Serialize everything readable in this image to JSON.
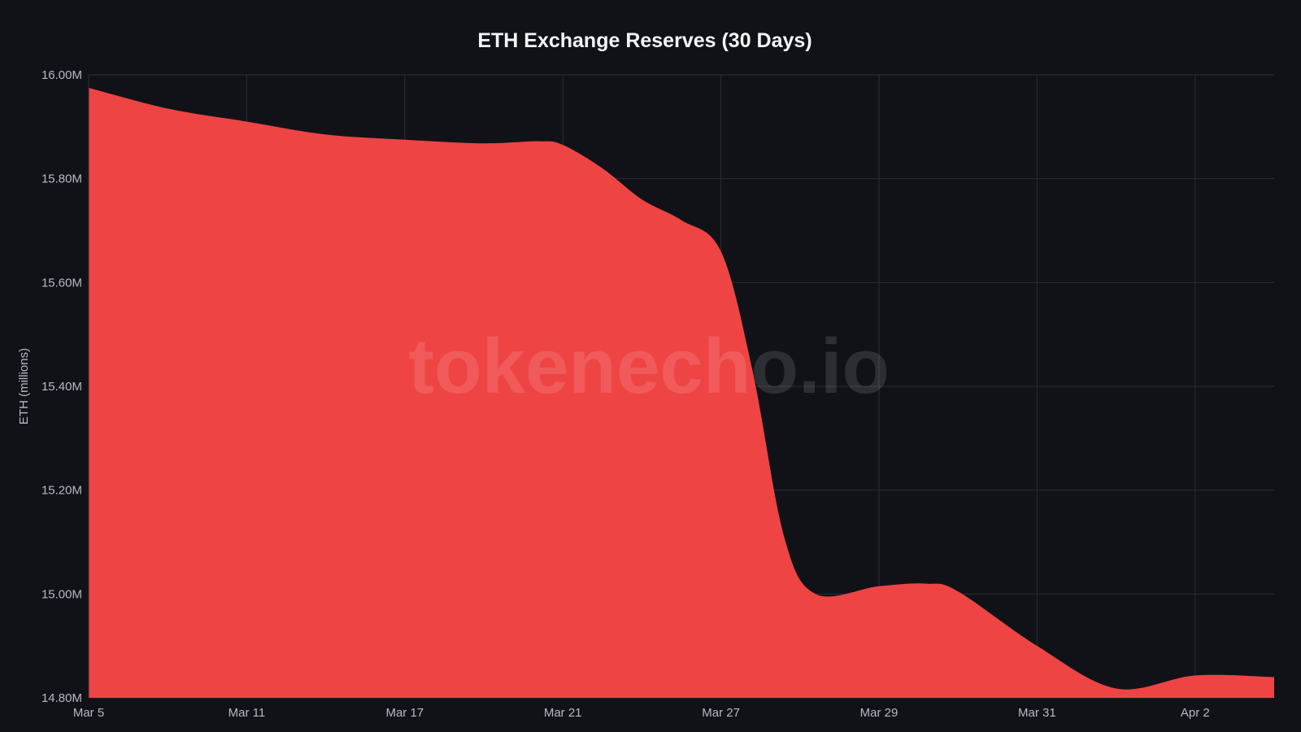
{
  "chart_data": {
    "type": "area",
    "title": "ETH Exchange Reserves (30 Days)",
    "xlabel": "",
    "ylabel": "ETH (millions)",
    "watermark": "tokenecho.io",
    "y_tick_labels": [
      "16.00M",
      "15.80M",
      "15.60M",
      "15.40M",
      "15.20M",
      "15.00M",
      "14.80M"
    ],
    "x_tick_labels": [
      "Mar 5",
      "Mar 11",
      "Mar 17",
      "Mar 21",
      "Mar 27",
      "Mar 29",
      "Mar 31",
      "Apr 2"
    ],
    "y_ticks": [
      16.0,
      15.8,
      15.6,
      15.4,
      15.2,
      15.0,
      14.8
    ],
    "ylim": [
      14.8,
      16.0
    ],
    "x_range_index": [
      0,
      7.5
    ],
    "grid": true,
    "legend": "none",
    "fill_color": "#ef4444",
    "background_color": "#111218",
    "points": [
      {
        "x": 0.0,
        "y": 15.975
      },
      {
        "x": 0.5,
        "y": 15.935
      },
      {
        "x": 1.0,
        "y": 15.91
      },
      {
        "x": 1.5,
        "y": 15.885
      },
      {
        "x": 2.0,
        "y": 15.875
      },
      {
        "x": 2.5,
        "y": 15.868
      },
      {
        "x": 2.85,
        "y": 15.872
      },
      {
        "x": 3.0,
        "y": 15.865
      },
      {
        "x": 3.25,
        "y": 15.82
      },
      {
        "x": 3.5,
        "y": 15.76
      },
      {
        "x": 3.75,
        "y": 15.72
      },
      {
        "x": 4.0,
        "y": 15.66
      },
      {
        "x": 4.2,
        "y": 15.43
      },
      {
        "x": 4.4,
        "y": 15.11
      },
      {
        "x": 4.6,
        "y": 15.0
      },
      {
        "x": 5.0,
        "y": 15.015
      },
      {
        "x": 5.3,
        "y": 15.02
      },
      {
        "x": 5.5,
        "y": 15.005
      },
      {
        "x": 6.0,
        "y": 14.9
      },
      {
        "x": 6.5,
        "y": 14.818
      },
      {
        "x": 7.0,
        "y": 14.843
      },
      {
        "x": 7.5,
        "y": 14.84
      }
    ]
  }
}
